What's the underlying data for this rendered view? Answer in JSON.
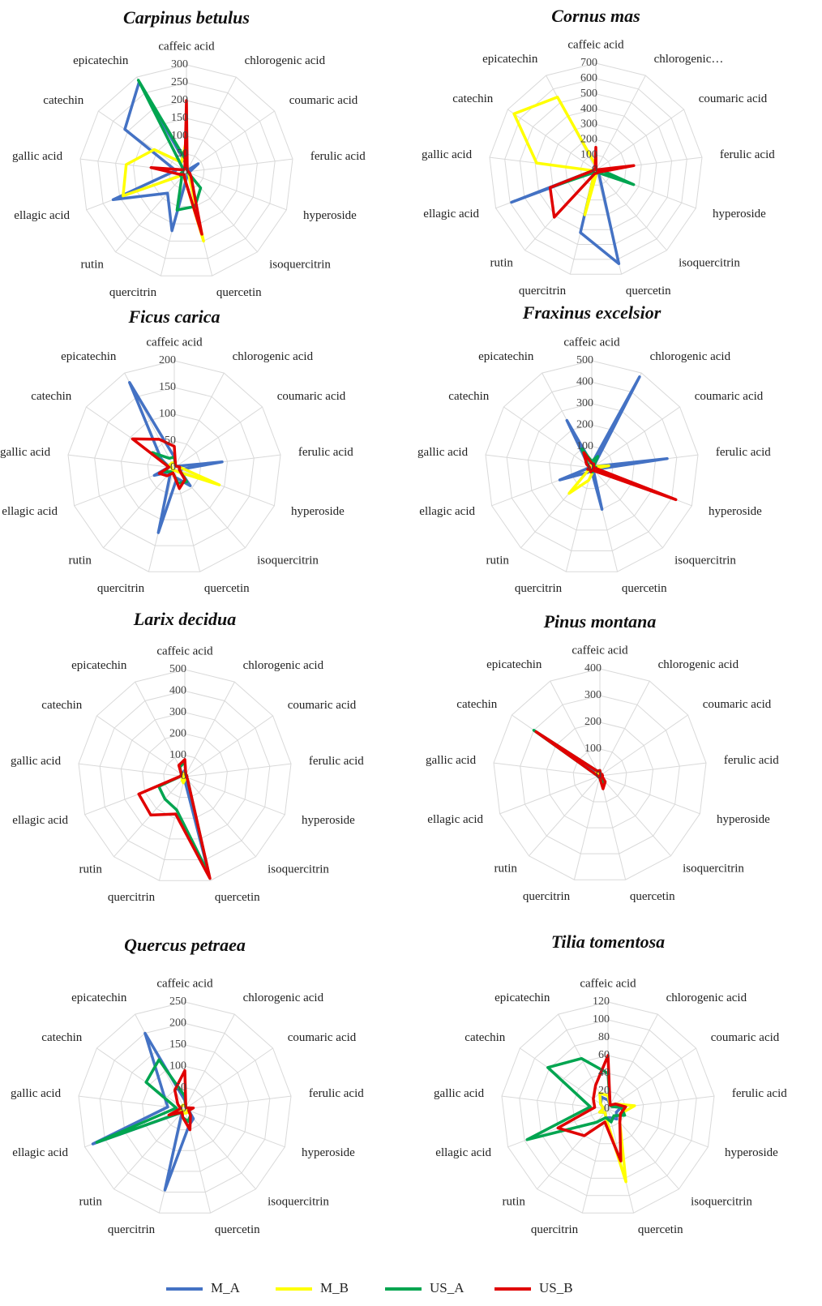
{
  "chart_data": [
    {
      "type": "radar",
      "title": "Carpinus betulus",
      "categories": [
        "caffeic acid",
        "chlorogenic acid",
        "coumaric acid",
        "ferulic acid",
        "hyperoside",
        "isoquercitrin",
        "quercetin",
        "quercitrin",
        "rutin",
        "ellagic acid",
        "gallic acid",
        "catechin",
        "epicatechin"
      ],
      "ylim": [
        0,
        300
      ],
      "yticks": [
        0,
        50,
        100,
        150,
        200,
        250,
        300
      ],
      "grid": true,
      "series": [
        {
          "name": "M_A",
          "color": "#4472c4",
          "values": [
            20,
            5,
            40,
            10,
            5,
            10,
            10,
            170,
            80,
            220,
            30,
            210,
            285
          ]
        },
        {
          "name": "M_B",
          "color": "#ffff00",
          "values": [
            90,
            5,
            5,
            5,
            5,
            10,
            200,
            20,
            10,
            190,
            170,
            110,
            30
          ]
        },
        {
          "name": "US_A",
          "color": "#00a550",
          "values": [
            30,
            5,
            5,
            5,
            5,
            60,
            100,
            110,
            20,
            20,
            10,
            10,
            290
          ]
        },
        {
          "name": "US_B",
          "color": "#e00000",
          "values": [
            200,
            5,
            5,
            5,
            10,
            20,
            180,
            20,
            10,
            20,
            100,
            10,
            10
          ]
        }
      ]
    },
    {
      "type": "radar",
      "title": "Cornus mas",
      "categories": [
        "caffeic acid",
        "chlorogenic…",
        "coumaric acid",
        "ferulic acid",
        "hyperoside",
        "isoquercitrin",
        "quercetin",
        "quercitrin",
        "rutin",
        "ellagic acid",
        "gallic acid",
        "catechin",
        "epicatechin"
      ],
      "ylim": [
        0,
        700
      ],
      "yticks": [
        0,
        100,
        200,
        300,
        400,
        500,
        600,
        700
      ],
      "grid": true,
      "series": [
        {
          "name": "M_A",
          "color": "#4472c4",
          "values": [
            20,
            5,
            5,
            10,
            10,
            30,
            630,
            420,
            10,
            590,
            10,
            10,
            10
          ]
        },
        {
          "name": "M_B",
          "color": "#ffff00",
          "values": [
            30,
            5,
            5,
            5,
            10,
            10,
            20,
            300,
            10,
            10,
            390,
            650,
            540
          ]
        },
        {
          "name": "US_A",
          "color": "#00a550",
          "values": [
            20,
            5,
            5,
            30,
            265,
            20,
            20,
            20,
            20,
            290,
            10,
            10,
            10
          ]
        },
        {
          "name": "US_B",
          "color": "#e00000",
          "values": [
            150,
            5,
            5,
            250,
            30,
            20,
            20,
            20,
            410,
            320,
            10,
            10,
            10
          ]
        }
      ]
    },
    {
      "type": "radar",
      "title": "Ficus carica",
      "categories": [
        "caffeic acid",
        "chlorogenic acid",
        "coumaric acid",
        "ferulic acid",
        "hyperoside",
        "isoquercitrin",
        "quercetin",
        "quercitrin",
        "rutin",
        "ellagic acid",
        "gallic acid",
        "catechin",
        "epicatechin"
      ],
      "ylim": [
        0,
        200
      ],
      "yticks": [
        0,
        50,
        100,
        150,
        200
      ],
      "grid": true,
      "series": [
        {
          "name": "M_A",
          "color": "#4472c4",
          "values": [
            20,
            5,
            5,
            90,
            10,
            45,
            20,
            125,
            10,
            40,
            10,
            30,
            180
          ]
        },
        {
          "name": "M_B",
          "color": "#ffff00",
          "values": [
            10,
            5,
            5,
            10,
            90,
            10,
            5,
            5,
            5,
            5,
            5,
            10,
            10
          ]
        },
        {
          "name": "US_A",
          "color": "#00a550",
          "values": [
            20,
            5,
            5,
            10,
            10,
            35,
            30,
            10,
            10,
            20,
            10,
            50,
            20
          ]
        },
        {
          "name": "US_B",
          "color": "#e00000",
          "values": [
            40,
            5,
            5,
            10,
            10,
            30,
            40,
            10,
            20,
            30,
            10,
            95,
            60
          ]
        }
      ]
    },
    {
      "type": "radar",
      "title": "Fraxinus excelsior",
      "categories": [
        "caffeic acid",
        "chlorogenic acid",
        "coumaric acid",
        "ferulic acid",
        "hyperoside",
        "isoquercitrin",
        "quercetin",
        "quercitrin",
        "rutin",
        "ellagic acid",
        "gallic acid",
        "catechin",
        "epicatechin"
      ],
      "ylim": [
        0,
        500
      ],
      "yticks": [
        0,
        100,
        200,
        300,
        400,
        500
      ],
      "grid": true,
      "series": [
        {
          "name": "M_A",
          "color": "#4472c4",
          "values": [
            20,
            480,
            10,
            355,
            20,
            10,
            200,
            10,
            30,
            160,
            10,
            20,
            250
          ]
        },
        {
          "name": "M_B",
          "color": "#ffff00",
          "values": [
            10,
            10,
            10,
            80,
            10,
            10,
            20,
            60,
            160,
            10,
            10,
            10,
            10
          ]
        },
        {
          "name": "US_A",
          "color": "#00a550",
          "values": [
            30,
            60,
            10,
            20,
            10,
            10,
            20,
            20,
            10,
            20,
            10,
            20,
            100
          ]
        },
        {
          "name": "US_B",
          "color": "#e00000",
          "values": [
            20,
            20,
            10,
            10,
            420,
            20,
            10,
            20,
            10,
            20,
            10,
            30,
            80
          ]
        }
      ]
    },
    {
      "type": "radar",
      "title": "Larix decidua",
      "categories": [
        "caffeic acid",
        "chlorogenic acid",
        "coumaric acid",
        "ferulic acid",
        "hyperoside",
        "isoquercitrin",
        "quercetin",
        "quercitrin",
        "rutin",
        "ellagic acid",
        "gallic acid",
        "catechin",
        "epicatechin"
      ],
      "ylim": [
        0,
        500
      ],
      "yticks": [
        0,
        100,
        200,
        300,
        400,
        500
      ],
      "grid": true,
      "series": [
        {
          "name": "M_A",
          "color": "#4472c4",
          "values": [
            30,
            10,
            10,
            10,
            10,
            10,
            450,
            10,
            10,
            10,
            10,
            10,
            20
          ]
        },
        {
          "name": "M_B",
          "color": "#ffff00",
          "values": [
            20,
            5,
            5,
            5,
            5,
            5,
            10,
            30,
            20,
            10,
            10,
            10,
            10
          ]
        },
        {
          "name": "US_A",
          "color": "#00a550",
          "values": [
            70,
            10,
            10,
            10,
            10,
            20,
            470,
            160,
            140,
            130,
            20,
            20,
            50
          ]
        },
        {
          "name": "US_B",
          "color": "#e00000",
          "values": [
            80,
            10,
            10,
            10,
            10,
            20,
            490,
            180,
            240,
            230,
            20,
            20,
            60
          ]
        }
      ]
    },
    {
      "type": "radar",
      "title": "Pinus montana",
      "categories": [
        "caffeic acid",
        "chlorogenic acid",
        "coumaric acid",
        "ferulic acid",
        "hyperoside",
        "isoquercitrin",
        "quercetin",
        "quercitrin",
        "rutin",
        "ellagic acid",
        "gallic acid",
        "catechin",
        "epicatechin"
      ],
      "ylim": [
        0,
        400
      ],
      "yticks": [
        0,
        100,
        200,
        300,
        400
      ],
      "grid": true,
      "series": [
        {
          "name": "M_A",
          "color": "#4472c4",
          "values": [
            10,
            5,
            5,
            5,
            5,
            10,
            30,
            5,
            5,
            5,
            10,
            60,
            10
          ]
        },
        {
          "name": "M_B",
          "color": "#ffff00",
          "values": [
            5,
            5,
            5,
            5,
            5,
            5,
            10,
            5,
            5,
            5,
            5,
            20,
            5
          ]
        },
        {
          "name": "US_A",
          "color": "#00a550",
          "values": [
            20,
            5,
            5,
            5,
            5,
            20,
            40,
            5,
            5,
            5,
            10,
            300,
            20
          ]
        },
        {
          "name": "US_B",
          "color": "#e00000",
          "values": [
            20,
            5,
            10,
            10,
            10,
            30,
            50,
            5,
            5,
            5,
            10,
            290,
            20
          ]
        }
      ]
    },
    {
      "type": "radar",
      "title": "Quercus petraea",
      "categories": [
        "caffeic acid",
        "chlorogenic acid",
        "coumaric acid",
        "ferulic acid",
        "hyperoside",
        "isoquercitrin",
        "quercetin",
        "quercitrin",
        "rutin",
        "ellagic acid",
        "gallic acid",
        "catechin",
        "epicatechin"
      ],
      "ylim": [
        0,
        250
      ],
      "yticks": [
        0,
        50,
        100,
        150,
        200,
        250
      ],
      "grid": true,
      "series": [
        {
          "name": "M_A",
          "color": "#4472c4",
          "values": [
            20,
            5,
            5,
            10,
            10,
            30,
            40,
            195,
            10,
            230,
            40,
            60,
            200
          ]
        },
        {
          "name": "M_B",
          "color": "#ffff00",
          "values": [
            10,
            5,
            5,
            5,
            5,
            10,
            10,
            10,
            5,
            10,
            10,
            10,
            10
          ]
        },
        {
          "name": "US_A",
          "color": "#00a550",
          "values": [
            30,
            5,
            5,
            10,
            10,
            20,
            30,
            20,
            10,
            220,
            20,
            110,
            130
          ]
        },
        {
          "name": "US_B",
          "color": "#e00000",
          "values": [
            90,
            5,
            5,
            20,
            10,
            20,
            50,
            20,
            10,
            40,
            10,
            20,
            50
          ]
        }
      ]
    },
    {
      "type": "radar",
      "title": "Tilia tomentosa",
      "categories": [
        "caffeic acid",
        "chlorogenic acid",
        "coumaric acid",
        "ferulic acid",
        "hyperoside",
        "isoquercitrin",
        "quercetin",
        "quercitrin",
        "rutin",
        "ellagic acid",
        "gallic acid",
        "catechin",
        "epicatechin"
      ],
      "ylim": [
        0,
        120
      ],
      "yticks": [
        0,
        20,
        40,
        60,
        80,
        100,
        120
      ],
      "grid": true,
      "series": [
        {
          "name": "M_A",
          "color": "#4472c4",
          "values": [
            10,
            5,
            5,
            15,
            10,
            15,
            10,
            10,
            5,
            10,
            5,
            10,
            15
          ]
        },
        {
          "name": "M_B",
          "color": "#ffff00",
          "values": [
            15,
            5,
            10,
            30,
            15,
            20,
            84,
            10,
            5,
            10,
            5,
            10,
            20
          ]
        },
        {
          "name": "US_A",
          "color": "#00a550",
          "values": [
            40,
            5,
            5,
            15,
            20,
            10,
            15,
            10,
            20,
            97,
            20,
            82,
            64
          ]
        },
        {
          "name": "US_B",
          "color": "#e00000",
          "values": [
            60,
            5,
            10,
            20,
            15,
            20,
            60,
            15,
            40,
            60,
            15,
            20,
            30
          ]
        }
      ]
    }
  ]
}
